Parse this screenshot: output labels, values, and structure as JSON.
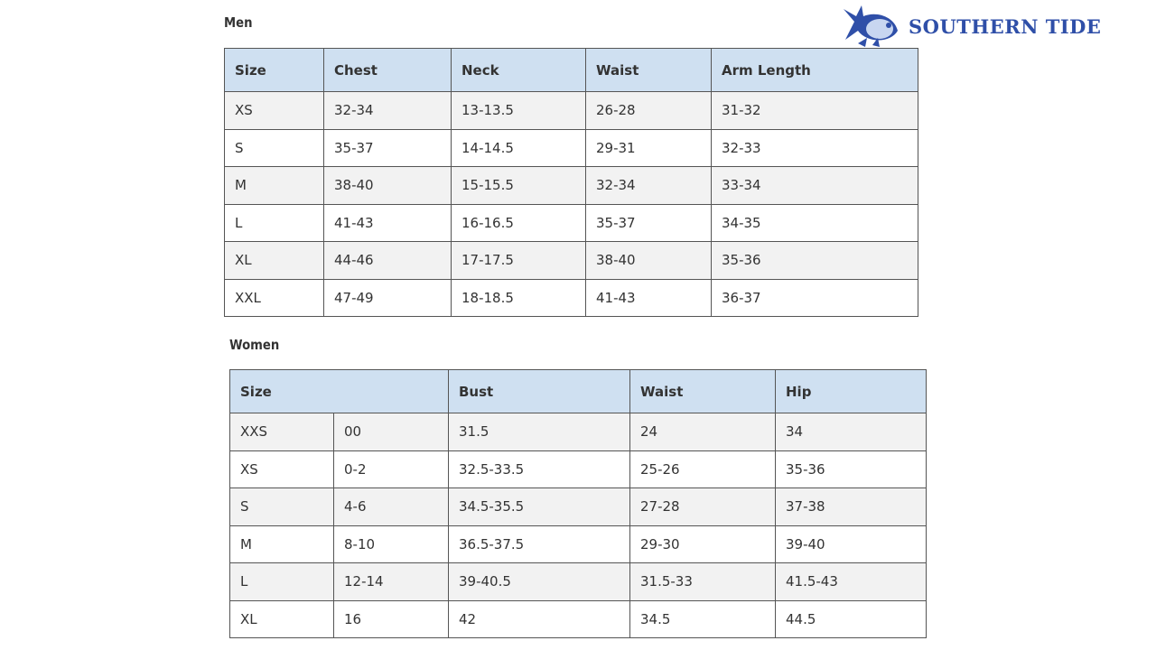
{
  "brand": {
    "name": "SOUTHERN TIDE",
    "color": "#2f4fa8"
  },
  "men": {
    "title": "Men",
    "headers": [
      "Size",
      "Chest",
      "Neck",
      "Waist",
      "Arm Length"
    ],
    "rows": [
      [
        "XS",
        "32-34",
        "13-13.5",
        "26-28",
        "31-32"
      ],
      [
        "S",
        "35-37",
        "14-14.5",
        "29-31",
        "32-33"
      ],
      [
        "M",
        "38-40",
        "15-15.5",
        "32-34",
        "33-34"
      ],
      [
        "L",
        "41-43",
        "16-16.5",
        "35-37",
        "34-35"
      ],
      [
        "XL",
        "44-46",
        "17-17.5",
        "38-40",
        "35-36"
      ],
      [
        "XXL",
        "47-49",
        "18-18.5",
        "41-43",
        "36-37"
      ]
    ]
  },
  "women": {
    "title": "Women",
    "headers": [
      "Size",
      "Bust",
      "Waist",
      "Hip"
    ],
    "rows": [
      [
        "XXS",
        "00",
        "31.5",
        "24",
        "34"
      ],
      [
        "XS",
        "0-2",
        "32.5-33.5",
        "25-26",
        "35-36"
      ],
      [
        "S",
        "4-6",
        "34.5-35.5",
        "27-28",
        "37-38"
      ],
      [
        "M",
        "8-10",
        "36.5-37.5",
        "29-30",
        "39-40"
      ],
      [
        "L",
        "12-14",
        "39-40.5",
        "31.5-33",
        "41.5-43"
      ],
      [
        "XL",
        "16",
        "42",
        "34.5",
        "44.5"
      ]
    ]
  },
  "colors": {
    "header_bg": "#cfe0f1",
    "stripe_bg": "#f2f2f2"
  }
}
